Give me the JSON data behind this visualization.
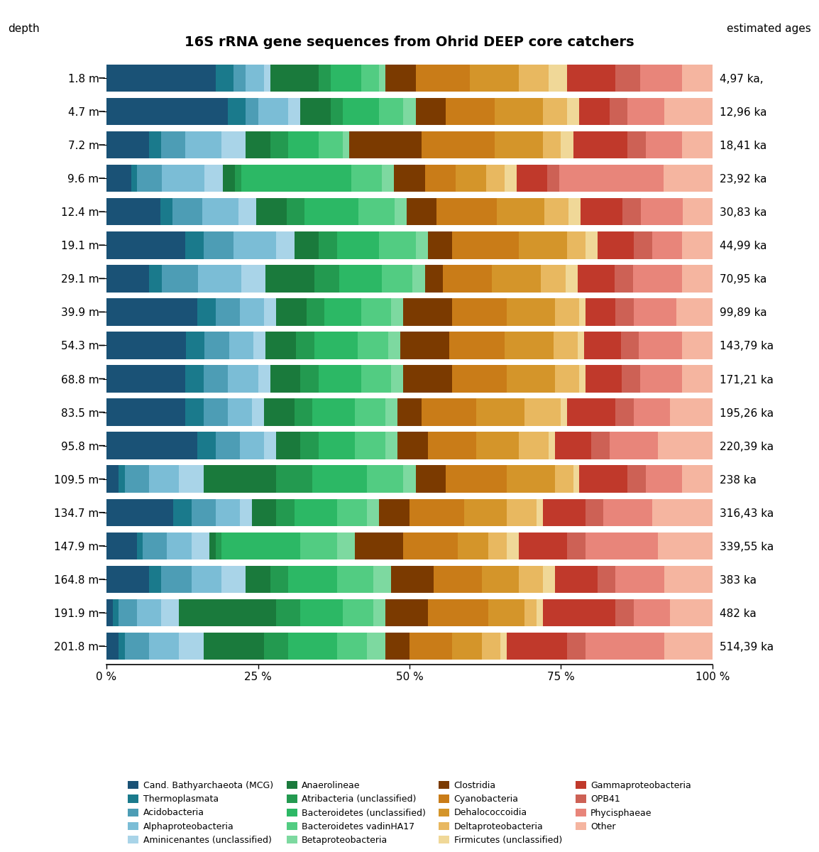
{
  "title": "16S rRNA gene sequences from Ohrid DEEP core catchers",
  "depth_labels": [
    "1.8 m",
    "4.7 m",
    "7.2 m",
    "9.6 m",
    "12.4 m",
    "19.1 m",
    "29.1 m",
    "39.9 m",
    "54.3 m",
    "68.8 m",
    "83.5 m",
    "95.8 m",
    "109.5 m",
    "134.7 m",
    "147.9 m",
    "164.8 m",
    "191.9 m",
    "201.8 m"
  ],
  "age_labels": [
    "4,97 ka,",
    "12,96 ka",
    "18,41 ka",
    "23,92 ka",
    "30,83 ka",
    "44,99 ka",
    "70,95 ka",
    "99,89 ka",
    "143,79 ka",
    "171,21 ka",
    "195,26 ka",
    "220,39 ka",
    "238 ka",
    "316,43 ka",
    "339,55 ka",
    "383 ka",
    "482 ka",
    "514,39 ka"
  ],
  "categories": [
    "Cand. Bathyarchaeota (MCG)",
    "Thermoplasmata",
    "Acidobacteria",
    "Alphaproteobacteria",
    "Aminicenantes (unclassified)",
    "Anaerolineae",
    "Atribacteria (unclassified)",
    "Bacteroidetes (unclassified)",
    "Bacteroidetes vadinHA17",
    "Betaproteobacteria",
    "Clostridia",
    "Cyanobacteria",
    "Dehalococcoidia",
    "Deltaproteobacteria",
    "Firmicutes (unclassified)",
    "Gammaproteobacteria",
    "OPB41",
    "Phycisphaeae",
    "Other"
  ],
  "colors": [
    "#1a5276",
    "#1a7a8c",
    "#4d9db5",
    "#7bbdd6",
    "#a9d4e8",
    "#1a7a3c",
    "#239a50",
    "#2cb865",
    "#52cc82",
    "#7dd9a0",
    "#7b3a00",
    "#c97c18",
    "#d4952a",
    "#e8b860",
    "#f0d898",
    "#c0392b",
    "#cd6155",
    "#e8857a",
    "#f5b5a0"
  ],
  "data": [
    [
      18,
      3,
      2,
      3,
      1,
      8,
      2,
      5,
      3,
      1,
      5,
      9,
      8,
      5,
      3,
      8,
      4,
      7,
      5
    ],
    [
      20,
      3,
      2,
      5,
      2,
      5,
      2,
      6,
      4,
      2,
      5,
      8,
      8,
      4,
      2,
      5,
      3,
      6,
      8
    ],
    [
      7,
      2,
      4,
      6,
      4,
      4,
      3,
      5,
      4,
      1,
      12,
      12,
      8,
      3,
      2,
      9,
      3,
      6,
      5
    ],
    [
      4,
      1,
      4,
      7,
      3,
      2,
      1,
      18,
      5,
      2,
      5,
      5,
      5,
      3,
      2,
      5,
      2,
      17,
      8
    ],
    [
      9,
      2,
      5,
      6,
      3,
      5,
      3,
      9,
      6,
      2,
      5,
      10,
      8,
      4,
      2,
      7,
      3,
      7,
      5
    ],
    [
      13,
      3,
      5,
      7,
      3,
      4,
      3,
      7,
      6,
      2,
      4,
      11,
      8,
      3,
      2,
      6,
      3,
      5,
      5
    ],
    [
      7,
      2,
      6,
      7,
      4,
      8,
      4,
      7,
      5,
      2,
      3,
      8,
      8,
      4,
      2,
      6,
      3,
      8,
      5
    ],
    [
      15,
      3,
      4,
      4,
      2,
      5,
      3,
      6,
      5,
      2,
      8,
      9,
      8,
      4,
      1,
      5,
      3,
      7,
      6
    ],
    [
      13,
      3,
      4,
      4,
      2,
      5,
      3,
      7,
      5,
      2,
      8,
      9,
      8,
      4,
      1,
      6,
      3,
      7,
      5
    ],
    [
      13,
      3,
      4,
      5,
      2,
      5,
      3,
      7,
      5,
      2,
      8,
      9,
      8,
      4,
      1,
      6,
      3,
      7,
      5
    ],
    [
      13,
      3,
      4,
      4,
      2,
      5,
      3,
      7,
      5,
      2,
      4,
      9,
      8,
      6,
      1,
      8,
      3,
      6,
      7
    ],
    [
      15,
      3,
      4,
      4,
      2,
      4,
      3,
      6,
      5,
      2,
      5,
      8,
      7,
      5,
      1,
      6,
      3,
      8,
      9
    ],
    [
      2,
      1,
      4,
      5,
      4,
      12,
      6,
      9,
      6,
      2,
      5,
      10,
      8,
      3,
      1,
      8,
      3,
      6,
      5
    ],
    [
      11,
      3,
      4,
      4,
      2,
      4,
      3,
      7,
      5,
      2,
      5,
      9,
      7,
      5,
      1,
      7,
      3,
      8,
      10
    ],
    [
      5,
      1,
      4,
      4,
      3,
      1,
      1,
      13,
      6,
      3,
      8,
      9,
      5,
      3,
      2,
      8,
      3,
      12,
      9
    ],
    [
      7,
      2,
      5,
      5,
      4,
      4,
      3,
      8,
      6,
      3,
      7,
      8,
      6,
      4,
      2,
      7,
      3,
      8,
      8
    ],
    [
      1,
      1,
      3,
      4,
      3,
      16,
      4,
      7,
      5,
      2,
      7,
      10,
      6,
      2,
      1,
      12,
      3,
      6,
      7
    ],
    [
      2,
      1,
      4,
      5,
      4,
      10,
      4,
      8,
      5,
      3,
      4,
      7,
      5,
      3,
      1,
      10,
      3,
      13,
      8
    ]
  ],
  "bg_color": "#ffffff",
  "title_fontsize": 14,
  "tick_fontsize": 11,
  "legend_fontsize": 9
}
